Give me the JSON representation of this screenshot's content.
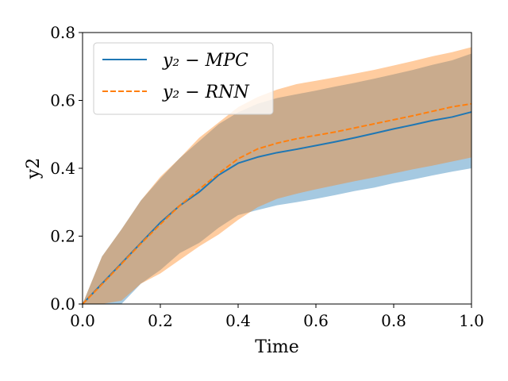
{
  "chart_data": {
    "type": "line",
    "xlabel": "Time",
    "ylabel": "y2",
    "xlim": [
      0.0,
      1.0
    ],
    "ylim": [
      0.0,
      0.8
    ],
    "xticks": [
      0.0,
      0.2,
      0.4,
      0.6,
      0.8,
      1.0
    ],
    "yticks": [
      0.0,
      0.2,
      0.4,
      0.6,
      0.8
    ],
    "xtick_labels": [
      "0.0",
      "0.2",
      "0.4",
      "0.6",
      "0.8",
      "1.0"
    ],
    "ytick_labels": [
      "0.0",
      "0.2",
      "0.4",
      "0.6",
      "0.8"
    ],
    "legend_position": "top-left",
    "x": [
      0.0,
      0.05,
      0.1,
      0.15,
      0.2,
      0.25,
      0.3,
      0.35,
      0.4,
      0.45,
      0.5,
      0.55,
      0.6,
      0.65,
      0.7,
      0.75,
      0.8,
      0.85,
      0.9,
      0.95,
      1.0
    ],
    "series": [
      {
        "name": "y2 − MPC",
        "legend_label": "y₂ − MPC",
        "color": "#1f77b4",
        "band_color": "#1f77b4",
        "linestyle": "solid",
        "values": [
          0.0,
          0.06,
          0.12,
          0.18,
          0.24,
          0.29,
          0.33,
          0.38,
          0.415,
          0.433,
          0.446,
          0.456,
          0.467,
          0.478,
          0.49,
          0.503,
          0.516,
          0.528,
          0.541,
          0.551,
          0.566
        ],
        "lower": [
          0.0,
          0.0,
          0.0,
          0.06,
          0.1,
          0.15,
          0.18,
          0.225,
          0.262,
          0.277,
          0.291,
          0.3,
          0.31,
          0.321,
          0.333,
          0.343,
          0.356,
          0.367,
          0.379,
          0.39,
          0.4
        ],
        "upper": [
          0.0,
          0.14,
          0.22,
          0.305,
          0.37,
          0.43,
          0.48,
          0.53,
          0.565,
          0.59,
          0.607,
          0.618,
          0.629,
          0.641,
          0.652,
          0.664,
          0.677,
          0.69,
          0.705,
          0.718,
          0.738
        ]
      },
      {
        "name": "y2 − RNN",
        "legend_label": "y₂ − RNN",
        "color": "#ff7f0e",
        "band_color": "#ff7f0e",
        "linestyle": "dashed",
        "values": [
          0.0,
          0.058,
          0.118,
          0.178,
          0.235,
          0.29,
          0.338,
          0.385,
          0.428,
          0.457,
          0.474,
          0.487,
          0.497,
          0.507,
          0.519,
          0.531,
          0.543,
          0.555,
          0.568,
          0.581,
          0.59
        ],
        "lower": [
          0.0,
          0.0,
          0.01,
          0.06,
          0.09,
          0.13,
          0.17,
          0.205,
          0.248,
          0.285,
          0.31,
          0.325,
          0.338,
          0.35,
          0.362,
          0.373,
          0.385,
          0.397,
          0.408,
          0.42,
          0.432
        ],
        "upper": [
          0.0,
          0.14,
          0.22,
          0.305,
          0.375,
          0.43,
          0.49,
          0.535,
          0.58,
          0.61,
          0.632,
          0.648,
          0.658,
          0.668,
          0.679,
          0.69,
          0.703,
          0.716,
          0.73,
          0.742,
          0.757
        ]
      }
    ]
  }
}
